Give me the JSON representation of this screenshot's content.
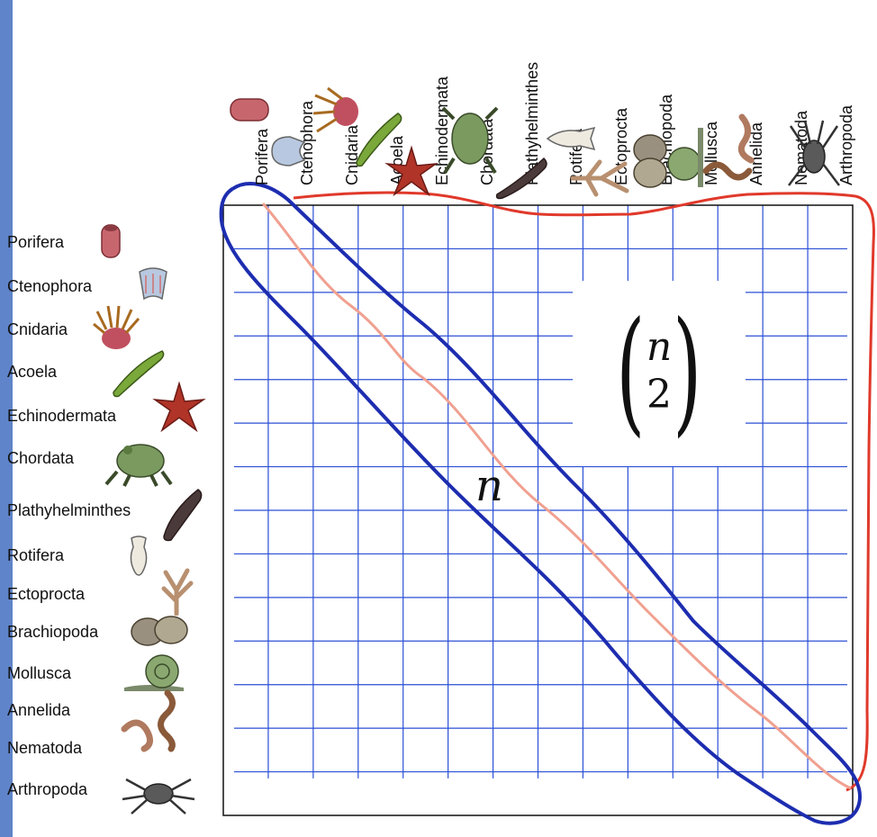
{
  "phyla": [
    "Porifera",
    "Ctenophora",
    "Cnidaria",
    "Acoela",
    "Echinodermata",
    "Chordata",
    "Plathyhelminthes",
    "Rotifera",
    "Ectoprocta",
    "Brachiopoda",
    "Mollusca",
    "Annelida",
    "Nematoda",
    "Arthropoda"
  ],
  "annotations": {
    "binom_top": "n",
    "binom_bottom": "2",
    "diagonal_label": "n"
  },
  "colors": {
    "grid": "#2b4fd6",
    "diagonal_outline": "#1d2db0",
    "upper_outline": "#e0392b",
    "diagonal_line": "#f0a090",
    "side_bar": "#5f84c9"
  }
}
